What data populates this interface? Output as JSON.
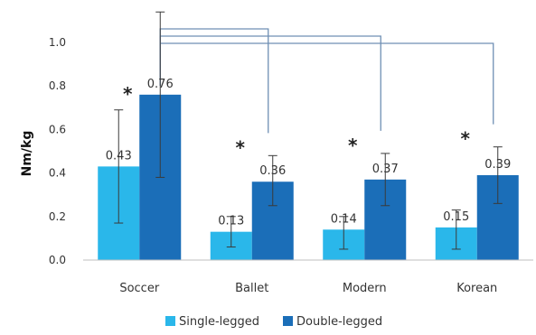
{
  "chart_data": {
    "type": "bar",
    "ylabel": "Nm/kg",
    "xlabel": "",
    "title": "",
    "ylim": [
      0,
      1.0
    ],
    "yticks": [
      "0.0",
      "0.2",
      "0.4",
      "0.6",
      "0.8",
      "1.0"
    ],
    "grid": false,
    "legend_position": "bottom",
    "categories": [
      "Soccer",
      "Ballet",
      "Modern",
      "Korean"
    ],
    "series": [
      {
        "name": "Single-legged",
        "color": "#2ab7ea",
        "values": [
          0.43,
          0.13,
          0.14,
          0.15
        ],
        "labels": [
          "0.43",
          "0.13",
          "0.14",
          "0.15"
        ],
        "err_low": [
          0.17,
          0.06,
          0.05,
          0.05
        ],
        "err_high": [
          0.69,
          0.2,
          0.2,
          0.23
        ]
      },
      {
        "name": "Double-legged",
        "color": "#1b6eb8",
        "values": [
          0.76,
          0.36,
          0.37,
          0.39
        ],
        "labels": [
          "0.76",
          "0.36",
          "0.37",
          "0.39"
        ],
        "err_low": [
          0.38,
          0.25,
          0.25,
          0.26
        ],
        "err_high": [
          1.14,
          0.48,
          0.49,
          0.52
        ]
      }
    ],
    "significance_marker": "*",
    "comparison_brackets": [
      {
        "from": "Soccer",
        "to": "Ballet"
      },
      {
        "from": "Soccer",
        "to": "Modern"
      },
      {
        "from": "Soccer",
        "to": "Korean"
      }
    ]
  }
}
